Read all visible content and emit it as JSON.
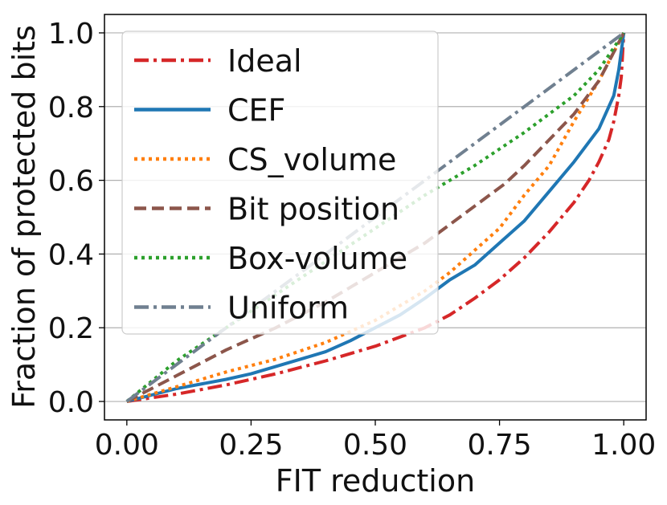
{
  "chart_data": {
    "type": "line",
    "title": "",
    "xlabel": "FIT reduction",
    "ylabel": "Fraction of protected bits",
    "xlim": [
      -0.045,
      1.045
    ],
    "ylim": [
      -0.05,
      1.05
    ],
    "x_ticks": [
      0.0,
      0.25,
      0.5,
      0.75,
      1.0
    ],
    "x_tick_labels": [
      "0.00",
      "0.25",
      "0.50",
      "0.75",
      "1.00"
    ],
    "y_ticks": [
      0.0,
      0.2,
      0.4,
      0.6,
      0.8,
      1.0
    ],
    "y_tick_labels": [
      "0.0",
      "0.2",
      "0.4",
      "0.6",
      "0.8",
      "1.0"
    ],
    "grid": "horizontal",
    "legend_position": "top-left",
    "series": [
      {
        "name": "Ideal",
        "color": "#d62728",
        "dash": "dashdot",
        "x": [
          0.0,
          0.1,
          0.2,
          0.3,
          0.4,
          0.5,
          0.6,
          0.65,
          0.7,
          0.75,
          0.8,
          0.85,
          0.9,
          0.93,
          0.95,
          0.97,
          0.98,
          0.99,
          0.995,
          1.0
        ],
        "y": [
          0.0,
          0.02,
          0.045,
          0.075,
          0.11,
          0.15,
          0.2,
          0.235,
          0.28,
          0.33,
          0.39,
          0.46,
          0.54,
          0.6,
          0.65,
          0.71,
          0.76,
          0.83,
          0.88,
          1.0
        ]
      },
      {
        "name": "CEF",
        "color": "#1f77b4",
        "dash": "solid",
        "x": [
          0.0,
          0.1,
          0.2,
          0.25,
          0.3,
          0.35,
          0.4,
          0.45,
          0.5,
          0.55,
          0.6,
          0.65,
          0.7,
          0.75,
          0.8,
          0.85,
          0.9,
          0.95,
          0.98,
          0.99,
          1.0
        ],
        "y": [
          0.0,
          0.035,
          0.06,
          0.075,
          0.095,
          0.115,
          0.135,
          0.165,
          0.2,
          0.235,
          0.28,
          0.33,
          0.37,
          0.43,
          0.49,
          0.57,
          0.65,
          0.74,
          0.83,
          0.9,
          1.0
        ]
      },
      {
        "name": "CS_volume",
        "color": "#ff7f0e",
        "dash": "dotted",
        "x": [
          0.0,
          0.1,
          0.2,
          0.3,
          0.4,
          0.5,
          0.6,
          0.65,
          0.7,
          0.75,
          0.8,
          0.85,
          0.9,
          0.95,
          1.0
        ],
        "y": [
          0.0,
          0.04,
          0.08,
          0.115,
          0.16,
          0.22,
          0.3,
          0.35,
          0.41,
          0.47,
          0.56,
          0.64,
          0.76,
          0.87,
          1.0
        ]
      },
      {
        "name": "Bit position",
        "color": "#8c564b",
        "dash": "dashed",
        "x": [
          0.0,
          0.1,
          0.2,
          0.3,
          0.4,
          0.5,
          0.6,
          0.7,
          0.76,
          0.8,
          0.9,
          0.95,
          1.0
        ],
        "y": [
          0.0,
          0.07,
          0.14,
          0.2,
          0.27,
          0.35,
          0.43,
          0.53,
          0.59,
          0.64,
          0.78,
          0.87,
          1.0
        ]
      },
      {
        "name": "Box-volume",
        "color": "#2ca02c",
        "dash": "dotted",
        "x": [
          0.0,
          0.1,
          0.2,
          0.3,
          0.4,
          0.5,
          0.6,
          0.7,
          0.8,
          0.9,
          0.95,
          1.0
        ],
        "y": [
          0.0,
          0.11,
          0.2,
          0.29,
          0.38,
          0.47,
          0.56,
          0.64,
          0.73,
          0.83,
          0.9,
          1.0
        ]
      },
      {
        "name": "Uniform",
        "color": "#708090",
        "dash": "dashdot",
        "x": [
          0.0,
          1.0
        ],
        "y": [
          0.0,
          1.0
        ]
      }
    ]
  }
}
